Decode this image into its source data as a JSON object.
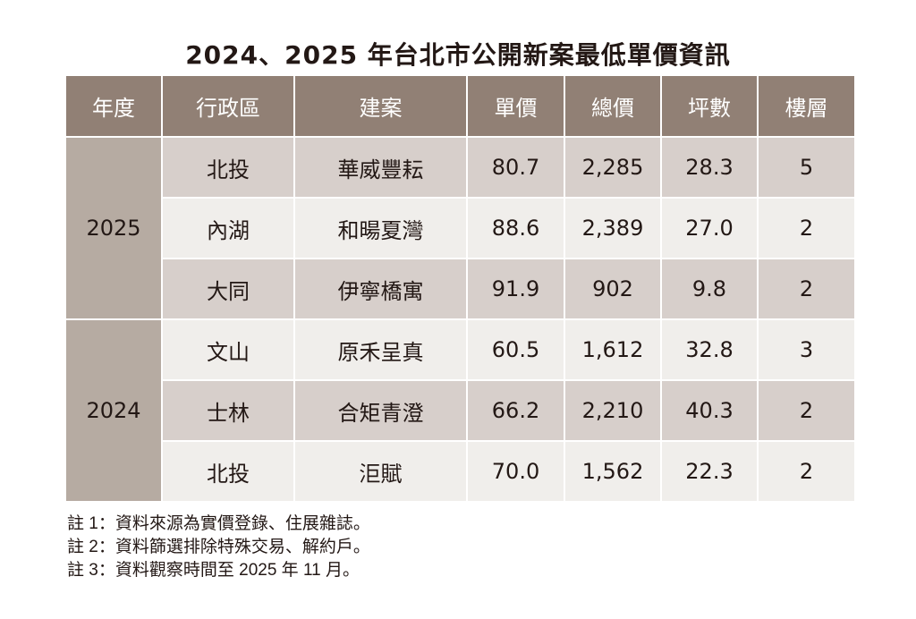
{
  "title": "2024、2025 年台北市公開新案最低單價資訊",
  "colors": {
    "header": "#918075",
    "year_column": "#b6aba2",
    "row_dark": "#d7cfcb",
    "row_light": "#f0eeeb"
  },
  "chart_data": {
    "type": "table",
    "title": "2024、2025 年台北市公開新案最低單價資訊",
    "columns": [
      "年度",
      "行政區",
      "建案",
      "單價",
      "總價",
      "坪數",
      "樓層"
    ],
    "groups": [
      {
        "year": "2025",
        "rows": [
          [
            "北投",
            "華威豐耘",
            "80.7",
            "2,285",
            "28.3",
            "5"
          ],
          [
            "內湖",
            "和暘夏灣",
            "88.6",
            "2,389",
            "27.0",
            "2"
          ],
          [
            "大同",
            "伊寧橋寓",
            "91.9",
            "902",
            "9.8",
            "2"
          ]
        ]
      },
      {
        "year": "2024",
        "rows": [
          [
            "文山",
            "原禾呈真",
            "60.5",
            "1,612",
            "32.8",
            "3"
          ],
          [
            "士林",
            "合矩青澄",
            "66.2",
            "2,210",
            "40.3",
            "2"
          ],
          [
            "北投",
            "洰賦",
            "70.0",
            "1,562",
            "22.3",
            "2"
          ]
        ]
      }
    ]
  },
  "notes": [
    "註 1：資料來源為實價登錄、住展雜誌。",
    "註 2：資料篩選排除特殊交易、解約戶。",
    "註 3：資料觀察時間至 2025 年 11 月。"
  ]
}
